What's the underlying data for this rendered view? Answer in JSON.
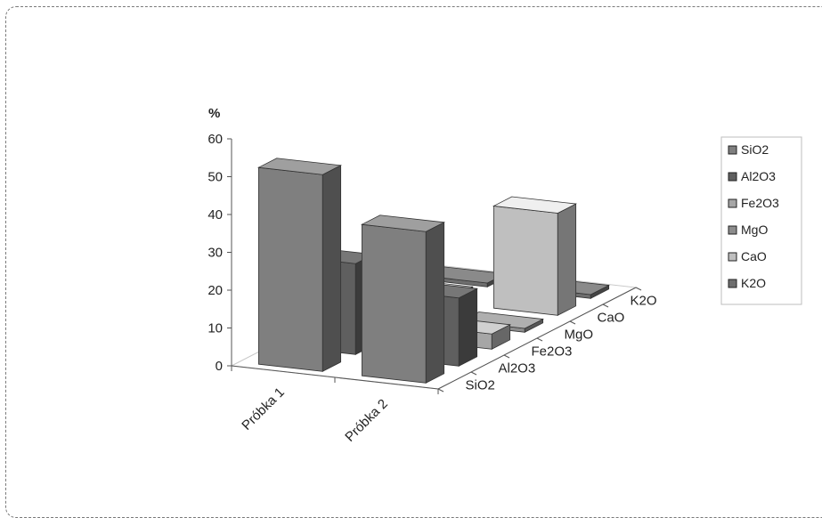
{
  "chart_data": {
    "type": "bar",
    "subtype": "3d-column",
    "ylabel": "%",
    "ylim": [
      0,
      60
    ],
    "y_ticks": [
      "0",
      "10",
      "20",
      "30",
      "40",
      "50",
      "60"
    ],
    "categories": [
      "Próbka 1",
      "Próbka 2"
    ],
    "series": [
      {
        "name": "SiO2",
        "values": [
          52,
          40
        ],
        "color": "#7f7f7f"
      },
      {
        "name": "Al2O3",
        "values": [
          24,
          18
        ],
        "color": "#5f5f5f"
      },
      {
        "name": "Fe2O3",
        "values": [
          7,
          4
        ],
        "color": "#a6a6a6"
      },
      {
        "name": "MgO",
        "values": [
          6,
          1
        ],
        "color": "#8c8c8c"
      },
      {
        "name": "CaO",
        "values": [
          2,
          27
        ],
        "color": "#bfbfbf"
      },
      {
        "name": "K2O",
        "values": [
          1,
          1
        ],
        "color": "#6e6e6e"
      }
    ],
    "legend_position": "right",
    "grid": false
  }
}
